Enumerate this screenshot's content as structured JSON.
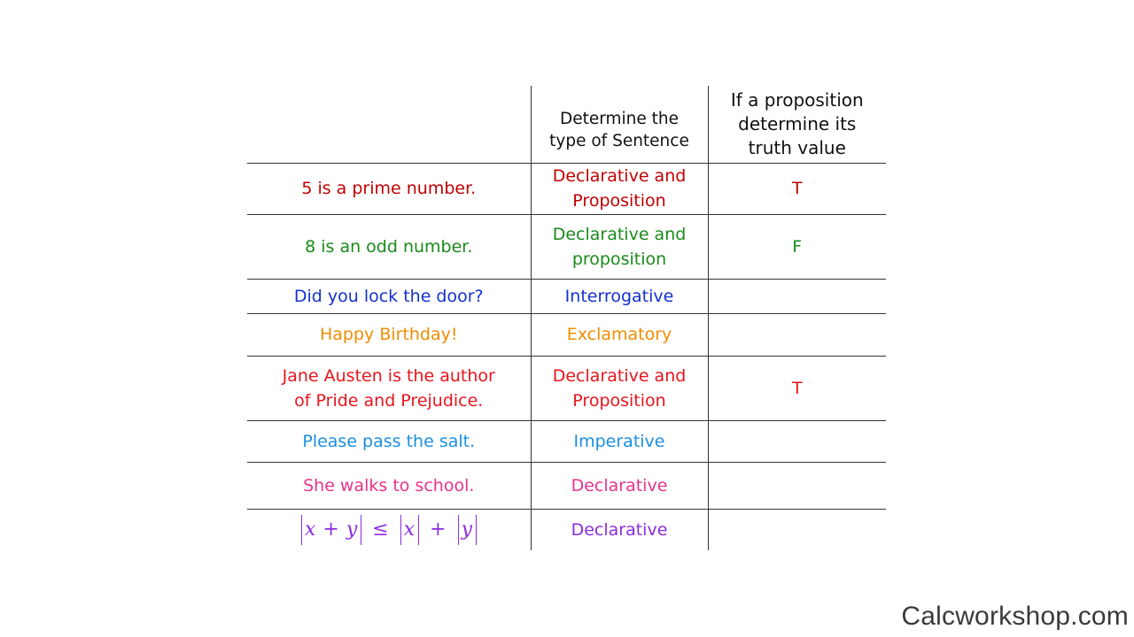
{
  "header": {
    "col1": "",
    "col2": "Determine the\ntype of Sentence",
    "col3": "If a proposition\ndetermine its\ntruth value"
  },
  "rows": [
    {
      "sentence": "5 is a prime number.",
      "type": "Declarative and\nProposition",
      "truth": "T",
      "color": "#c00000"
    },
    {
      "sentence": "8 is an odd number.",
      "type": "Declarative and\nproposition",
      "truth": "F",
      "color": "#1a8a1a"
    },
    {
      "sentence": "Did you lock the door?",
      "type": "Interrogative",
      "truth": "",
      "color": "#1530d0"
    },
    {
      "sentence": "Happy Birthday!",
      "type": "Exclamatory",
      "truth": "",
      "color": "#f08c00"
    },
    {
      "sentence": "Jane Austen is the author\nof Pride and Prejudice.",
      "type": "Declarative and\nProposition",
      "truth": "T",
      "color": "#e8141c"
    },
    {
      "sentence": "Please pass the salt.",
      "type": "Imperative",
      "truth": "",
      "color": "#1a8fe0"
    },
    {
      "sentence": "She walks to school.",
      "type": "Declarative",
      "truth": "",
      "color": "#e8338a"
    },
    {
      "sentence_formula": {
        "lhs": "x + y",
        "op": "≤",
        "a": "x",
        "plus": "+",
        "b": "y"
      },
      "type": "Declarative",
      "truth": "",
      "color": "#8a2be2"
    }
  ],
  "brand": "Calcworkshop.com"
}
